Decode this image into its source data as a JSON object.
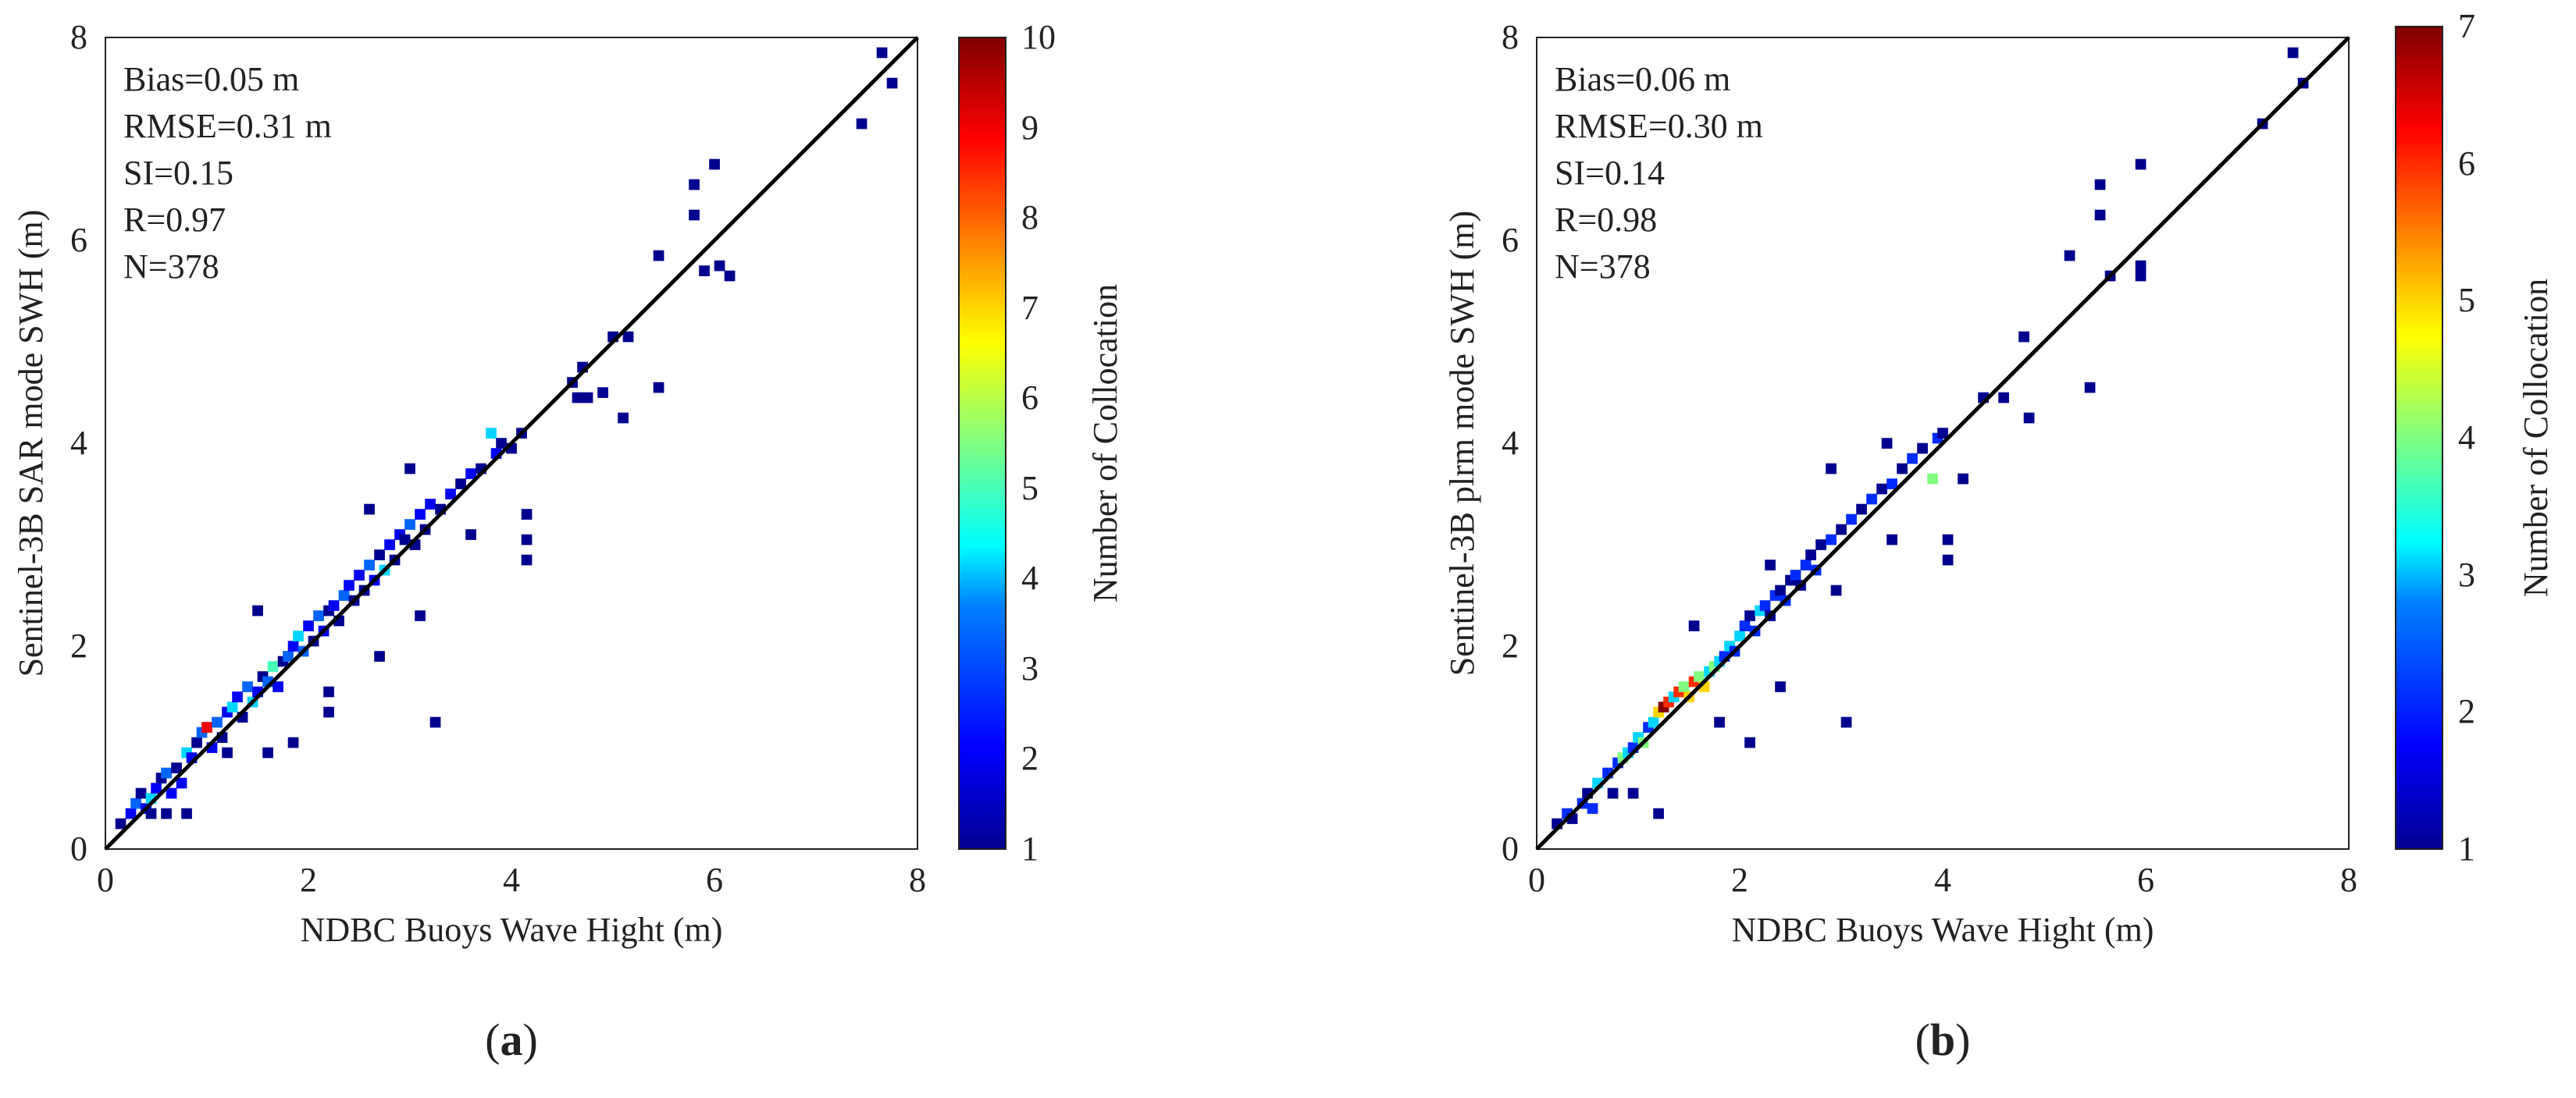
{
  "colors": {
    "jet": [
      "#00008f",
      "#0000ff",
      "#0080ff",
      "#00ffff",
      "#80ff80",
      "#ffff00",
      "#ff8000",
      "#ff0000",
      "#800000"
    ],
    "identity_line": "#000000",
    "axis": "#222222"
  },
  "chart_data": [
    {
      "type": "scatter",
      "subtype": "density-binned scatter",
      "panel_label": "a",
      "xlabel": "NDBC Buoys Wave Hight (m)",
      "ylabel": "Sentinel-3B SAR mode SWH (m)",
      "xlim": [
        0,
        8
      ],
      "ylim": [
        0,
        8
      ],
      "xticks": [
        "0",
        "2",
        "4",
        "6",
        "8"
      ],
      "yticks": [
        "0",
        "2",
        "4",
        "6",
        "8"
      ],
      "stats": [
        "Bias=0.05 m",
        "RMSE=0.31 m",
        "SI=0.15",
        "R=0.97",
        "N=378"
      ],
      "identity_line": true,
      "colorbar": {
        "label": "Number of Collocation",
        "range": [
          1,
          10
        ],
        "ticks": [
          "1",
          "2",
          "3",
          "4",
          "5",
          "6",
          "7",
          "8",
          "9",
          "10"
        ]
      },
      "points": [
        [
          0.15,
          0.25,
          1
        ],
        [
          0.25,
          0.35,
          2
        ],
        [
          0.3,
          0.45,
          3
        ],
        [
          0.35,
          0.55,
          1
        ],
        [
          0.4,
          0.4,
          2
        ],
        [
          0.45,
          0.5,
          4
        ],
        [
          0.5,
          0.6,
          2
        ],
        [
          0.55,
          0.7,
          1
        ],
        [
          0.45,
          0.35,
          1
        ],
        [
          0.6,
          0.75,
          3
        ],
        [
          0.65,
          0.55,
          2
        ],
        [
          0.7,
          0.8,
          1
        ],
        [
          0.75,
          0.65,
          2
        ],
        [
          0.8,
          0.95,
          4
        ],
        [
          0.85,
          0.9,
          2
        ],
        [
          0.9,
          1.05,
          1
        ],
        [
          0.95,
          1.15,
          3
        ],
        [
          1.0,
          1.2,
          9
        ],
        [
          1.05,
          1.0,
          2
        ],
        [
          1.1,
          1.25,
          3
        ],
        [
          1.15,
          1.1,
          1
        ],
        [
          1.2,
          1.35,
          2
        ],
        [
          1.25,
          1.4,
          4
        ],
        [
          1.3,
          1.5,
          2
        ],
        [
          1.35,
          1.3,
          1
        ],
        [
          1.4,
          1.6,
          3
        ],
        [
          1.45,
          1.45,
          4
        ],
        [
          1.5,
          1.55,
          2
        ],
        [
          1.55,
          1.7,
          1
        ],
        [
          1.6,
          1.65,
          3
        ],
        [
          1.65,
          1.8,
          5
        ],
        [
          1.7,
          1.6,
          2
        ],
        [
          1.75,
          1.85,
          1
        ],
        [
          1.8,
          1.9,
          3
        ],
        [
          1.85,
          2.0,
          2
        ],
        [
          1.9,
          2.1,
          4
        ],
        [
          1.95,
          1.95,
          3
        ],
        [
          2.0,
          2.2,
          2
        ],
        [
          2.05,
          2.05,
          1
        ],
        [
          2.1,
          2.3,
          3
        ],
        [
          2.15,
          2.15,
          2
        ],
        [
          2.2,
          2.35,
          1
        ],
        [
          2.25,
          2.4,
          2
        ],
        [
          2.3,
          2.25,
          1
        ],
        [
          2.35,
          2.5,
          3
        ],
        [
          2.4,
          2.6,
          2
        ],
        [
          2.45,
          2.45,
          1
        ],
        [
          2.5,
          2.7,
          2
        ],
        [
          2.55,
          2.55,
          1
        ],
        [
          2.6,
          2.8,
          3
        ],
        [
          2.65,
          2.65,
          2
        ],
        [
          2.7,
          2.9,
          1
        ],
        [
          2.75,
          2.75,
          4
        ],
        [
          2.8,
          3.0,
          2
        ],
        [
          2.85,
          2.85,
          1
        ],
        [
          2.9,
          3.1,
          2
        ],
        [
          2.95,
          3.05,
          1
        ],
        [
          3.0,
          3.2,
          3
        ],
        [
          3.05,
          3.0,
          1
        ],
        [
          3.1,
          3.3,
          2
        ],
        [
          3.15,
          3.15,
          1
        ],
        [
          3.2,
          3.4,
          2
        ],
        [
          3.3,
          3.35,
          1
        ],
        [
          3.4,
          3.5,
          2
        ],
        [
          3.5,
          3.6,
          1
        ],
        [
          3.6,
          3.7,
          2
        ],
        [
          3.7,
          3.75,
          1
        ],
        [
          3.8,
          4.1,
          4
        ],
        [
          3.85,
          3.9,
          2
        ],
        [
          3.9,
          4.0,
          1
        ],
        [
          4.0,
          3.95,
          1
        ],
        [
          4.1,
          4.1,
          1
        ],
        [
          4.15,
          3.3,
          1
        ],
        [
          4.15,
          3.05,
          1
        ],
        [
          4.15,
          2.85,
          1
        ],
        [
          4.6,
          4.6,
          1
        ],
        [
          4.7,
          4.75,
          1
        ],
        [
          4.65,
          4.45,
          1
        ],
        [
          4.75,
          4.45,
          1
        ],
        [
          4.9,
          4.5,
          1
        ],
        [
          5.0,
          5.05,
          1
        ],
        [
          5.15,
          5.05,
          1
        ],
        [
          5.1,
          4.25,
          1
        ],
        [
          5.45,
          5.85,
          1
        ],
        [
          5.45,
          4.55,
          1
        ],
        [
          5.8,
          6.55,
          1
        ],
        [
          5.8,
          6.25,
          1
        ],
        [
          5.9,
          5.7,
          1
        ],
        [
          6.0,
          6.75,
          1
        ],
        [
          6.05,
          5.75,
          1
        ],
        [
          6.15,
          5.65,
          1
        ],
        [
          7.45,
          7.15,
          1
        ],
        [
          7.65,
          7.85,
          1
        ],
        [
          7.75,
          7.55,
          1
        ],
        [
          3.25,
          1.25,
          1
        ],
        [
          1.5,
          2.35,
          1
        ],
        [
          2.6,
          3.35,
          1
        ],
        [
          3.0,
          3.75,
          1
        ],
        [
          0.8,
          0.35,
          1
        ],
        [
          1.6,
          0.95,
          1
        ],
        [
          1.85,
          1.05,
          1
        ],
        [
          2.2,
          1.35,
          1
        ],
        [
          2.7,
          1.9,
          1
        ],
        [
          3.1,
          2.3,
          1
        ],
        [
          3.6,
          3.1,
          1
        ],
        [
          2.2,
          1.55,
          1
        ],
        [
          1.2,
          0.95,
          1
        ],
        [
          0.6,
          0.35,
          1
        ]
      ]
    },
    {
      "type": "scatter",
      "subtype": "density-binned scatter",
      "panel_label": "b",
      "xlabel": "NDBC Buoys Wave Hight (m)",
      "ylabel": "Sentinel-3B plrm mode SWH (m)",
      "xlim": [
        0,
        8
      ],
      "ylim": [
        0,
        8
      ],
      "xticks": [
        "0",
        "2",
        "4",
        "6",
        "8"
      ],
      "yticks": [
        "0",
        "2",
        "4",
        "6",
        "8"
      ],
      "stats": [
        "Bias=0.06 m",
        "RMSE=0.30 m",
        "SI=0.14",
        "R=0.98",
        "N=378"
      ],
      "identity_line": true,
      "colorbar": {
        "label": "Number of Collocation",
        "range": [
          1,
          7
        ],
        "ticks": [
          "1",
          "2",
          "3",
          "4",
          "5",
          "6",
          "7"
        ]
      },
      "points": [
        [
          0.2,
          0.25,
          1
        ],
        [
          0.3,
          0.35,
          2
        ],
        [
          0.35,
          0.3,
          1
        ],
        [
          0.45,
          0.45,
          2
        ],
        [
          0.5,
          0.55,
          1
        ],
        [
          0.55,
          0.4,
          2
        ],
        [
          0.6,
          0.65,
          3
        ],
        [
          0.7,
          0.75,
          2
        ],
        [
          0.75,
          0.55,
          1
        ],
        [
          0.8,
          0.85,
          2
        ],
        [
          0.85,
          0.9,
          4
        ],
        [
          0.9,
          0.95,
          3
        ],
        [
          0.95,
          1.0,
          2
        ],
        [
          1.0,
          1.1,
          3
        ],
        [
          1.05,
          1.05,
          4
        ],
        [
          1.1,
          1.2,
          2
        ],
        [
          1.15,
          1.25,
          3
        ],
        [
          1.2,
          1.35,
          5
        ],
        [
          1.25,
          1.4,
          7
        ],
        [
          1.3,
          1.45,
          6
        ],
        [
          1.35,
          1.5,
          3
        ],
        [
          1.4,
          1.55,
          6
        ],
        [
          1.45,
          1.6,
          4
        ],
        [
          1.5,
          1.5,
          5
        ],
        [
          1.55,
          1.65,
          6
        ],
        [
          1.6,
          1.7,
          4
        ],
        [
          1.65,
          1.6,
          5
        ],
        [
          1.7,
          1.75,
          3
        ],
        [
          1.75,
          1.8,
          4
        ],
        [
          1.8,
          1.85,
          3
        ],
        [
          1.85,
          1.9,
          2
        ],
        [
          1.9,
          2.0,
          3
        ],
        [
          1.95,
          1.95,
          2
        ],
        [
          2.0,
          2.1,
          3
        ],
        [
          2.05,
          2.2,
          2
        ],
        [
          2.1,
          2.3,
          1
        ],
        [
          2.15,
          2.15,
          2
        ],
        [
          2.2,
          2.35,
          3
        ],
        [
          2.25,
          2.4,
          2
        ],
        [
          2.3,
          2.3,
          1
        ],
        [
          2.35,
          2.5,
          2
        ],
        [
          2.4,
          2.55,
          1
        ],
        [
          2.45,
          2.45,
          2
        ],
        [
          2.5,
          2.65,
          1
        ],
        [
          2.55,
          2.7,
          2
        ],
        [
          2.6,
          2.6,
          1
        ],
        [
          2.65,
          2.8,
          2
        ],
        [
          2.7,
          2.9,
          1
        ],
        [
          2.75,
          2.75,
          2
        ],
        [
          2.8,
          3.0,
          1
        ],
        [
          2.9,
          3.05,
          2
        ],
        [
          3.0,
          3.15,
          1
        ],
        [
          3.1,
          3.25,
          2
        ],
        [
          3.2,
          3.35,
          1
        ],
        [
          3.3,
          3.45,
          2
        ],
        [
          3.4,
          3.55,
          1
        ],
        [
          3.5,
          3.6,
          2
        ],
        [
          3.6,
          3.75,
          1
        ],
        [
          3.7,
          3.85,
          2
        ],
        [
          3.8,
          3.95,
          1
        ],
        [
          3.9,
          3.65,
          4
        ],
        [
          3.95,
          4.05,
          2
        ],
        [
          4.0,
          4.1,
          1
        ],
        [
          4.05,
          3.05,
          1
        ],
        [
          4.05,
          2.85,
          1
        ],
        [
          4.2,
          3.65,
          1
        ],
        [
          4.4,
          4.45,
          1
        ],
        [
          4.6,
          4.45,
          1
        ],
        [
          4.8,
          5.05,
          1
        ],
        [
          4.85,
          4.25,
          1
        ],
        [
          5.25,
          5.85,
          1
        ],
        [
          5.45,
          4.55,
          1
        ],
        [
          5.55,
          6.55,
          1
        ],
        [
          5.55,
          6.25,
          1
        ],
        [
          5.65,
          5.65,
          1
        ],
        [
          5.95,
          6.75,
          1
        ],
        [
          5.95,
          5.75,
          1
        ],
        [
          5.95,
          5.65,
          1
        ],
        [
          7.15,
          7.15,
          1
        ],
        [
          7.45,
          7.85,
          1
        ],
        [
          7.55,
          7.55,
          1
        ],
        [
          3.05,
          1.25,
          1
        ],
        [
          2.1,
          1.05,
          1
        ],
        [
          1.2,
          0.35,
          1
        ],
        [
          0.95,
          0.55,
          1
        ],
        [
          1.8,
          1.25,
          1
        ],
        [
          2.4,
          1.6,
          1
        ],
        [
          2.95,
          2.55,
          1
        ],
        [
          3.5,
          3.05,
          1
        ],
        [
          2.9,
          3.75,
          1
        ],
        [
          3.45,
          4.0,
          1
        ],
        [
          1.55,
          2.2,
          1
        ],
        [
          2.3,
          2.8,
          1
        ]
      ]
    }
  ]
}
